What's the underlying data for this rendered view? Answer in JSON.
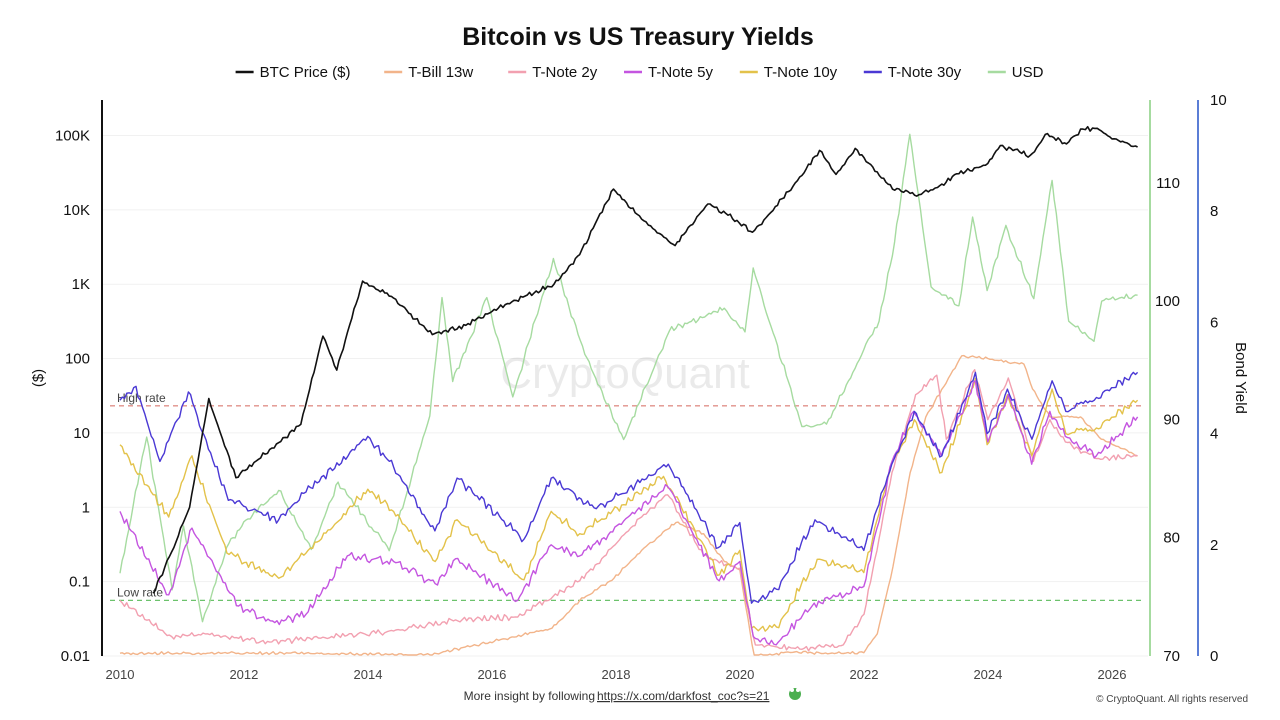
{
  "chart_data": {
    "type": "line",
    "title": "Bitcoin vs US Treasury Yields",
    "x_range": [
      "2010-01-01",
      "2026-08-01"
    ],
    "x_ticks": [
      "2010",
      "2012",
      "2014",
      "2016",
      "2018",
      "2020",
      "2022",
      "2024",
      "2026"
    ],
    "y_left": {
      "label": "($)",
      "scale": "log",
      "range": [
        0.01,
        300000
      ],
      "ticks": [
        "0.01",
        "0.1",
        "1",
        "10",
        "100",
        "1K",
        "10K",
        "100K"
      ]
    },
    "y_right_usd": {
      "range": [
        70,
        117
      ],
      "ticks": [
        "70",
        "80",
        "90",
        "100",
        "110"
      ]
    },
    "y_right_yield": {
      "label": "Bond Yield",
      "range": [
        0,
        10
      ],
      "ticks": [
        "0",
        "2",
        "4",
        "6",
        "8",
        "10"
      ]
    },
    "reference_lines": [
      {
        "label": "High rate",
        "value": 4.5,
        "axis": "yield",
        "color": "#e0908a"
      },
      {
        "label": "Low rate",
        "value": 1.0,
        "axis": "yield",
        "color": "#6cc26c"
      }
    ],
    "grid": true,
    "legend_position": "top",
    "watermark": "CryptoQuant",
    "series": [
      {
        "name": "BTC Price ($)",
        "axis": "price",
        "color": "#111111",
        "points": [
          [
            "2010-07-15",
            0.07
          ],
          [
            "2010-11-01",
            0.25
          ],
          [
            "2011-02-15",
            1
          ],
          [
            "2011-06-08",
            29
          ],
          [
            "2011-11-15",
            2.5
          ],
          [
            "2012-06-01",
            6
          ],
          [
            "2012-12-01",
            13
          ],
          [
            "2013-04-10",
            200
          ],
          [
            "2013-07-01",
            70
          ],
          [
            "2013-11-30",
            1100
          ],
          [
            "2014-06-01",
            650
          ],
          [
            "2015-01-15",
            210
          ],
          [
            "2015-08-01",
            280
          ],
          [
            "2016-01-01",
            430
          ],
          [
            "2016-07-01",
            670
          ],
          [
            "2017-01-01",
            1000
          ],
          [
            "2017-06-01",
            2500
          ],
          [
            "2017-12-17",
            19000
          ],
          [
            "2018-06-01",
            7500
          ],
          [
            "2018-12-15",
            3300
          ],
          [
            "2019-06-26",
            12000
          ],
          [
            "2019-12-15",
            7200
          ],
          [
            "2020-03-15",
            5000
          ],
          [
            "2020-07-01",
            9200
          ],
          [
            "2020-12-31",
            29000
          ],
          [
            "2021-04-14",
            63000
          ],
          [
            "2021-07-20",
            30000
          ],
          [
            "2021-11-10",
            67000
          ],
          [
            "2022-06-18",
            19000
          ],
          [
            "2022-11-21",
            16000
          ],
          [
            "2023-03-10",
            20000
          ],
          [
            "2023-07-01",
            30500
          ],
          [
            "2023-12-31",
            42000
          ],
          [
            "2024-03-14",
            73000
          ],
          [
            "2024-09-06",
            54000
          ],
          [
            "2024-12-17",
            106000
          ],
          [
            "2025-04-08",
            77000
          ],
          [
            "2025-07-14",
            122000
          ],
          [
            "2025-10-06",
            125000
          ],
          [
            "2026-01-01",
            90000
          ],
          [
            "2026-06-01",
            70000
          ]
        ]
      },
      {
        "name": "T-Bill 13w",
        "axis": "yield",
        "color": "#f2b48a",
        "points": [
          [
            "2010-01-01",
            0.05
          ],
          [
            "2011-06-01",
            0.05
          ],
          [
            "2013-01-01",
            0.05
          ],
          [
            "2015-01-01",
            0.02
          ],
          [
            "2015-12-20",
            0.25
          ],
          [
            "2016-12-20",
            0.5
          ],
          [
            "2017-06-01",
            1.0
          ],
          [
            "2017-12-20",
            1.4
          ],
          [
            "2018-06-01",
            1.9
          ],
          [
            "2018-12-20",
            2.4
          ],
          [
            "2019-06-01",
            2.2
          ],
          [
            "2019-10-01",
            1.7
          ],
          [
            "2019-12-31",
            1.55
          ],
          [
            "2020-03-25",
            0.0
          ],
          [
            "2020-12-01",
            0.08
          ],
          [
            "2021-06-01",
            0.04
          ],
          [
            "2021-12-31",
            0.06
          ],
          [
            "2022-03-20",
            0.4
          ],
          [
            "2022-06-20",
            1.6
          ],
          [
            "2022-09-30",
            3.3
          ],
          [
            "2022-12-31",
            4.3
          ],
          [
            "2023-07-31",
            5.4
          ],
          [
            "2023-12-31",
            5.35
          ],
          [
            "2024-07-31",
            5.25
          ],
          [
            "2024-09-20",
            4.8
          ],
          [
            "2024-12-31",
            4.3
          ],
          [
            "2025-06-30",
            4.3
          ],
          [
            "2025-10-30",
            3.9
          ],
          [
            "2026-06-01",
            3.6
          ]
        ]
      },
      {
        "name": "T-Note 2y",
        "axis": "yield",
        "color": "#f2a0b0",
        "points": [
          [
            "2010-01-01",
            1.0
          ],
          [
            "2010-11-01",
            0.35
          ],
          [
            "2011-06-01",
            0.4
          ],
          [
            "2012-06-01",
            0.25
          ],
          [
            "2013-06-01",
            0.35
          ],
          [
            "2014-06-01",
            0.45
          ],
          [
            "2015-06-01",
            0.65
          ],
          [
            "2016-06-01",
            0.7
          ],
          [
            "2017-06-01",
            1.35
          ],
          [
            "2018-06-01",
            2.5
          ],
          [
            "2018-11-01",
            2.9
          ],
          [
            "2019-06-01",
            1.8
          ],
          [
            "2019-12-31",
            1.58
          ],
          [
            "2020-04-01",
            0.2
          ],
          [
            "2021-01-01",
            0.12
          ],
          [
            "2021-09-01",
            0.2
          ],
          [
            "2022-01-01",
            0.75
          ],
          [
            "2022-06-15",
            3.3
          ],
          [
            "2022-11-01",
            4.7
          ],
          [
            "2023-03-06",
            5.05
          ],
          [
            "2023-05-01",
            3.9
          ],
          [
            "2023-10-15",
            5.15
          ],
          [
            "2023-12-31",
            4.25
          ],
          [
            "2024-04-30",
            5.0
          ],
          [
            "2024-09-25",
            3.5
          ],
          [
            "2024-12-31",
            4.25
          ],
          [
            "2025-04-01",
            3.85
          ],
          [
            "2025-10-01",
            3.55
          ],
          [
            "2026-06-01",
            3.6
          ]
        ]
      },
      {
        "name": "T-Note 5y",
        "axis": "yield",
        "color": "#c455e0",
        "points": [
          [
            "2010-01-01",
            2.6
          ],
          [
            "2010-10-15",
            1.1
          ],
          [
            "2011-03-01",
            2.3
          ],
          [
            "2011-12-01",
            0.9
          ],
          [
            "2012-07-01",
            0.6
          ],
          [
            "2013-01-01",
            0.75
          ],
          [
            "2013-09-01",
            1.8
          ],
          [
            "2014-06-01",
            1.7
          ],
          [
            "2015-02-01",
            1.3
          ],
          [
            "2015-06-01",
            1.75
          ],
          [
            "2016-06-01",
            1.0
          ],
          [
            "2016-12-15",
            2.0
          ],
          [
            "2017-06-01",
            1.8
          ],
          [
            "2018-11-01",
            3.05
          ],
          [
            "2019-09-01",
            1.35
          ],
          [
            "2019-12-31",
            1.7
          ],
          [
            "2020-03-20",
            0.35
          ],
          [
            "2020-08-01",
            0.2
          ],
          [
            "2021-03-01",
            0.9
          ],
          [
            "2021-12-31",
            1.25
          ],
          [
            "2022-06-15",
            3.5
          ],
          [
            "2022-10-20",
            4.4
          ],
          [
            "2023-04-01",
            3.6
          ],
          [
            "2023-10-19",
            4.95
          ],
          [
            "2023-12-31",
            3.85
          ],
          [
            "2024-04-30",
            4.7
          ],
          [
            "2024-09-15",
            3.45
          ],
          [
            "2024-12-31",
            4.4
          ],
          [
            "2025-04-01",
            3.95
          ],
          [
            "2025-10-01",
            3.6
          ],
          [
            "2026-06-01",
            4.3
          ]
        ]
      },
      {
        "name": "T-Note 10y",
        "axis": "yield",
        "color": "#e3c24a",
        "points": [
          [
            "2010-01-01",
            3.8
          ],
          [
            "2010-10-15",
            2.5
          ],
          [
            "2011-03-01",
            3.6
          ],
          [
            "2011-09-23",
            1.85
          ],
          [
            "2012-07-24",
            1.4
          ],
          [
            "2013-01-01",
            1.85
          ],
          [
            "2013-12-31",
            3.0
          ],
          [
            "2014-06-01",
            2.6
          ],
          [
            "2015-02-01",
            1.7
          ],
          [
            "2015-06-10",
            2.45
          ],
          [
            "2016-07-08",
            1.37
          ],
          [
            "2016-12-15",
            2.6
          ],
          [
            "2017-06-01",
            2.2
          ],
          [
            "2018-10-08",
            3.23
          ],
          [
            "2019-09-03",
            1.46
          ],
          [
            "2019-12-31",
            1.9
          ],
          [
            "2020-03-09",
            0.5
          ],
          [
            "2020-08-04",
            0.52
          ],
          [
            "2021-03-31",
            1.74
          ],
          [
            "2021-12-31",
            1.5
          ],
          [
            "2022-06-14",
            3.48
          ],
          [
            "2022-10-24",
            4.25
          ],
          [
            "2023-04-05",
            3.3
          ],
          [
            "2023-10-19",
            4.99
          ],
          [
            "2023-12-27",
            3.8
          ],
          [
            "2024-04-25",
            4.7
          ],
          [
            "2024-09-16",
            3.6
          ],
          [
            "2025-01-13",
            4.8
          ],
          [
            "2025-04-04",
            4.0
          ],
          [
            "2025-10-01",
            4.1
          ],
          [
            "2026-06-01",
            4.6
          ]
        ]
      },
      {
        "name": "T-Note 30y",
        "axis": "yield",
        "color": "#4a38d4",
        "points": [
          [
            "2010-01-01",
            4.6
          ],
          [
            "2010-04-05",
            4.85
          ],
          [
            "2010-08-24",
            3.5
          ],
          [
            "2011-02-08",
            4.75
          ],
          [
            "2011-10-01",
            2.8
          ],
          [
            "2012-07-24",
            2.45
          ],
          [
            "2013-01-01",
            2.95
          ],
          [
            "2013-12-31",
            3.95
          ],
          [
            "2014-06-01",
            3.4
          ],
          [
            "2015-01-30",
            2.25
          ],
          [
            "2015-06-10",
            3.2
          ],
          [
            "2016-07-08",
            2.1
          ],
          [
            "2016-12-15",
            3.2
          ],
          [
            "2017-09-07",
            2.65
          ],
          [
            "2018-11-05",
            3.45
          ],
          [
            "2019-08-27",
            1.95
          ],
          [
            "2019-12-31",
            2.4
          ],
          [
            "2020-03-09",
            0.95
          ],
          [
            "2020-08-04",
            1.2
          ],
          [
            "2021-03-18",
            2.45
          ],
          [
            "2021-12-31",
            1.9
          ],
          [
            "2022-06-14",
            3.45
          ],
          [
            "2022-10-24",
            4.4
          ],
          [
            "2023-04-05",
            3.6
          ],
          [
            "2023-10-19",
            5.1
          ],
          [
            "2023-12-27",
            4.0
          ],
          [
            "2024-04-25",
            4.8
          ],
          [
            "2024-09-16",
            3.9
          ],
          [
            "2025-01-13",
            4.95
          ],
          [
            "2025-04-04",
            4.4
          ],
          [
            "2025-10-01",
            4.65
          ],
          [
            "2026-06-01",
            5.1
          ]
        ]
      },
      {
        "name": "USD",
        "axis": "usd",
        "color": "#a6dba0",
        "points": [
          [
            "2010-01-01",
            77
          ],
          [
            "2010-06-07",
            88.5
          ],
          [
            "2010-11-04",
            75.6
          ],
          [
            "2011-01-10",
            81
          ],
          [
            "2011-05-02",
            72.9
          ],
          [
            "2011-10-04",
            79.5
          ],
          [
            "2012-01-13",
            81.5
          ],
          [
            "2012-07-24",
            84
          ],
          [
            "2013-02-01",
            79
          ],
          [
            "2013-07-09",
            84.7
          ],
          [
            "2014-05-06",
            78.9
          ],
          [
            "2014-12-31",
            90.3
          ],
          [
            "2015-03-13",
            100.3
          ],
          [
            "2015-05-15",
            93.2
          ],
          [
            "2015-12-02",
            100.3
          ],
          [
            "2016-05-03",
            91.9
          ],
          [
            "2016-12-28",
            103.6
          ],
          [
            "2017-07-01",
            95.5
          ],
          [
            "2018-02-15",
            88.3
          ],
          [
            "2018-11-12",
            97.5
          ],
          [
            "2019-10-01",
            99.4
          ],
          [
            "2020-01-31",
            97.4
          ],
          [
            "2020-03-19",
            102.8
          ],
          [
            "2020-12-31",
            89.4
          ],
          [
            "2021-05-25",
            89.6
          ],
          [
            "2021-12-31",
            95.9
          ],
          [
            "2022-03-31",
            98.3
          ],
          [
            "2022-06-30",
            105
          ],
          [
            "2022-09-28",
            114.1
          ],
          [
            "2023-01-31",
            101.2
          ],
          [
            "2023-07-14",
            99.6
          ],
          [
            "2023-10-03",
            107.1
          ],
          [
            "2023-12-27",
            100.9
          ],
          [
            "2024-04-16",
            106.4
          ],
          [
            "2024-09-27",
            100.2
          ],
          [
            "2025-01-13",
            110.2
          ],
          [
            "2025-04-21",
            98.3
          ],
          [
            "2025-09-17",
            96.6
          ],
          [
            "2025-11-01",
            100
          ],
          [
            "2026-06-01",
            100.5
          ]
        ]
      }
    ]
  },
  "footer": {
    "insight_text": "More insight by following ",
    "insight_link": "https://x.com/darkfost_coc?s=21",
    "copyright": "© CryptoQuant. All rights reserved"
  }
}
